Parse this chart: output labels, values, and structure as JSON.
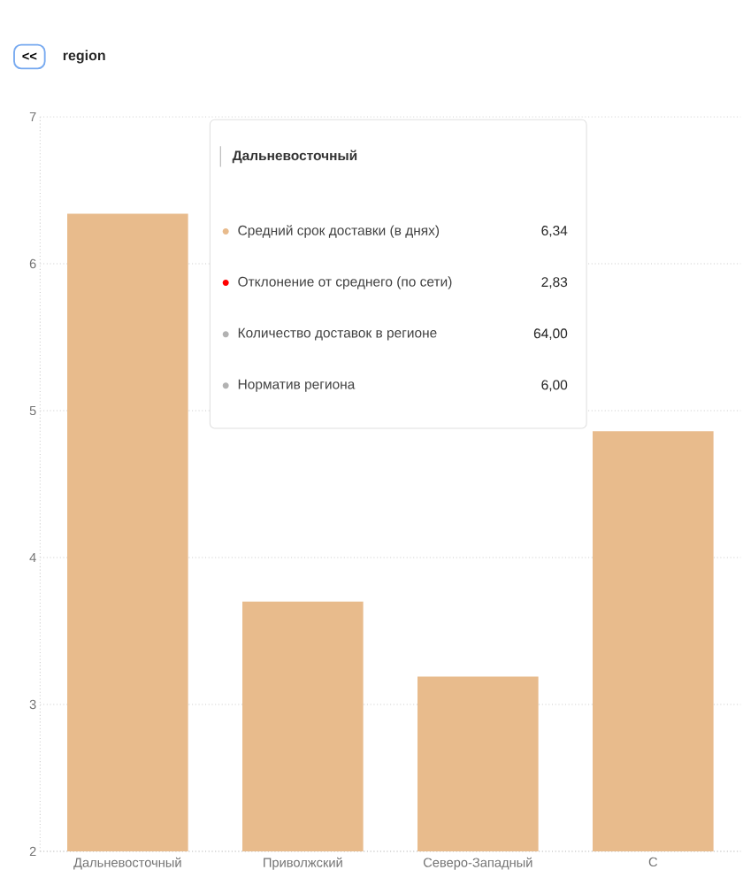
{
  "chart_data": {
    "type": "bar",
    "title": "region",
    "categories": [
      "Дальневосточный",
      "Приволжский",
      "Северо-Западный",
      "С"
    ],
    "series": [
      {
        "color": "#e8bb8c",
        "values": [
          6.34,
          3.7,
          3.19,
          4.86
        ]
      }
    ],
    "ylim": [
      2,
      7
    ],
    "yticks": [
      2,
      3,
      4,
      5,
      6,
      7
    ],
    "grid": "y",
    "annotations": [
      "<<",
      "Дальневосточный",
      "Средний срок доставки (в днях)",
      "Отклонение от среднего (по сети)",
      "Количество доставок в регионе",
      "Норматив региона",
      "6,34",
      "2,83",
      "64,00",
      "6,00"
    ]
  }
}
